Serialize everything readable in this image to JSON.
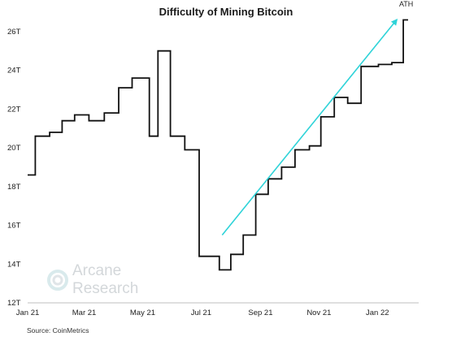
{
  "chart_data": {
    "type": "line",
    "title": "Difficulty of Mining Bitcoin",
    "xlabel": "",
    "ylabel": "",
    "ylim": [
      12,
      27
    ],
    "yticks": [
      "12T",
      "14T",
      "16T",
      "18T",
      "20T",
      "22T",
      "24T",
      "26T"
    ],
    "ytick_values": [
      12,
      14,
      16,
      18,
      20,
      22,
      24,
      26
    ],
    "xticks": [
      "Jan 21",
      "Mar 21",
      "May 21",
      "Jul 21",
      "Sep 21",
      "Nov 21",
      "Jan 22"
    ],
    "xtick_values": [
      0,
      59,
      120,
      181,
      243,
      304,
      365
    ],
    "xlim": [
      0,
      397
    ],
    "grid": false,
    "line_color": "#111111",
    "series": [
      {
        "step": true,
        "x": [
          0,
          8,
          23,
          36,
          49,
          64,
          80,
          95,
          109,
          127,
          136,
          149,
          164,
          179,
          200,
          212,
          225,
          238,
          251,
          265,
          279,
          294,
          306,
          320,
          334,
          348,
          366,
          380,
          392,
          397
        ],
        "y": [
          18.6,
          20.6,
          20.8,
          21.4,
          21.7,
          21.4,
          21.8,
          23.1,
          23.6,
          20.6,
          25.0,
          20.6,
          19.9,
          14.4,
          13.7,
          14.5,
          15.5,
          17.6,
          18.4,
          19.0,
          19.9,
          20.1,
          21.6,
          22.6,
          22.3,
          24.2,
          24.3,
          24.4,
          26.6,
          26.6
        ]
      }
    ],
    "trend_arrow": {
      "color": "#2ed3d8",
      "from": [
        203,
        15.5
      ],
      "to": [
        385,
        26.6
      ]
    },
    "annotations": [
      {
        "text": "ATH",
        "x": 395,
        "y": 27.3
      }
    ]
  },
  "watermark": {
    "line1": "Arcane",
    "line2": "Research"
  },
  "source": "Source: CoinMetrics"
}
